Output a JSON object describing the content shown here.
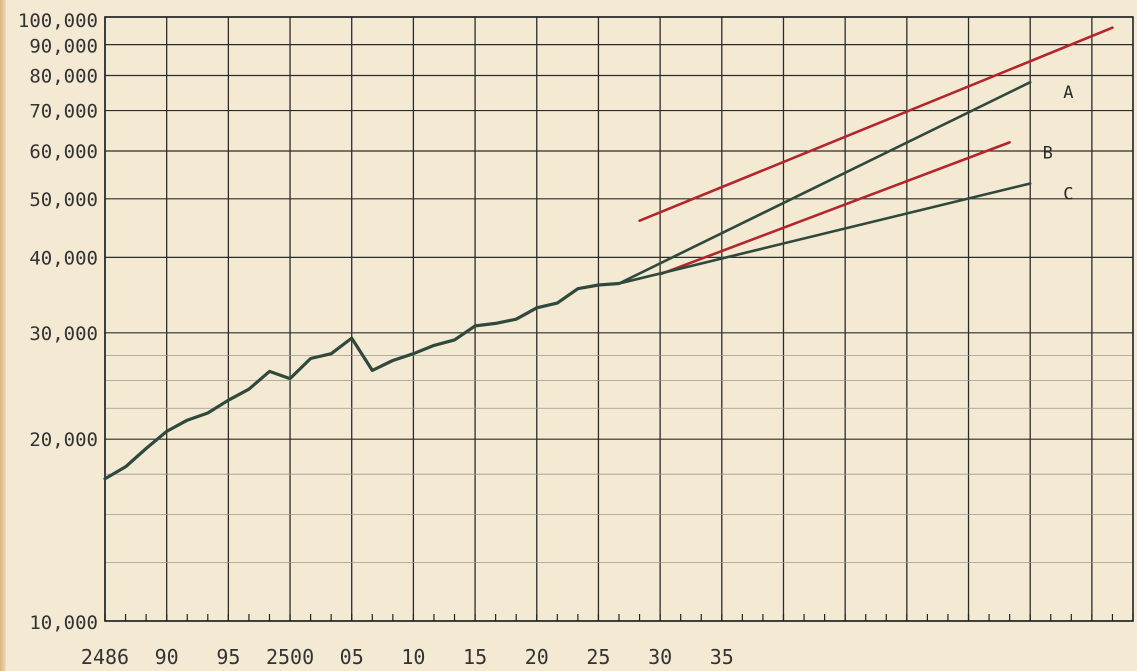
{
  "chart_data": {
    "type": "line",
    "title": "",
    "xlabel": "",
    "ylabel": "",
    "xscale": "linear",
    "yscale": "log",
    "xlim": [
      2486,
      2536
    ],
    "ylim": [
      10000,
      100000
    ],
    "grid": true,
    "legend": "none",
    "x_tick_labels": [
      {
        "x": 2486,
        "label": "2486"
      },
      {
        "x": 2489,
        "label": "90"
      },
      {
        "x": 2492,
        "label": "95"
      },
      {
        "x": 2495,
        "label": "2500"
      },
      {
        "x": 2498,
        "label": "05"
      },
      {
        "x": 2501,
        "label": "10"
      },
      {
        "x": 2504,
        "label": "15"
      },
      {
        "x": 2507,
        "label": "20"
      },
      {
        "x": 2510,
        "label": "25"
      },
      {
        "x": 2513,
        "label": "30"
      },
      {
        "x": 2516,
        "label": "35"
      }
    ],
    "y_tick_labels": [
      {
        "y": 100000,
        "label": "100,000"
      },
      {
        "y": 90000,
        "label": "90,000"
      },
      {
        "y": 80000,
        "label": "80,000"
      },
      {
        "y": 70000,
        "label": "70,000"
      },
      {
        "y": 60000,
        "label": "60,000"
      },
      {
        "y": 50000,
        "label": "50,000"
      },
      {
        "y": 40000,
        "label": "40,000"
      },
      {
        "y": 30000,
        "label": "30,000"
      },
      {
        "y": 20000,
        "label": "20,000"
      },
      {
        "y": 10000,
        "label": "10,000"
      }
    ],
    "series": [
      {
        "color": "#2f4a3c",
        "x": [
          2486,
          2487,
          2488,
          2489,
          2490,
          2491,
          2492,
          2493,
          2494,
          2495,
          2496,
          2497,
          2498,
          2499,
          2500,
          2501,
          2502,
          2503,
          2504,
          2505,
          2506,
          2507,
          2508,
          2509,
          2510,
          2511
        ],
        "values": [
          17200,
          18000,
          19300,
          20600,
          21500,
          22100,
          23200,
          24200,
          25900,
          25200,
          27200,
          27700,
          29400,
          26000,
          27000,
          27700,
          28600,
          29200,
          30800,
          31100,
          31600,
          33000,
          33600,
          35500,
          36000,
          36200
        ]
      },
      {
        "name": "A",
        "color": "#2f4a3c",
        "x": [
          2511,
          2531
        ],
        "values": [
          36200,
          78000
        ]
      },
      {
        "name": "B",
        "color": "#b3262b",
        "x": [
          2513,
          2530
        ],
        "values": [
          37500,
          62000
        ]
      },
      {
        "name": "C",
        "color": "#2f4a3c",
        "x": [
          2511,
          2531
        ],
        "values": [
          36200,
          53000
        ]
      },
      {
        "color": "#b3262b",
        "x": [
          2512,
          2535
        ],
        "values": [
          46000,
          96000
        ]
      }
    ]
  }
}
